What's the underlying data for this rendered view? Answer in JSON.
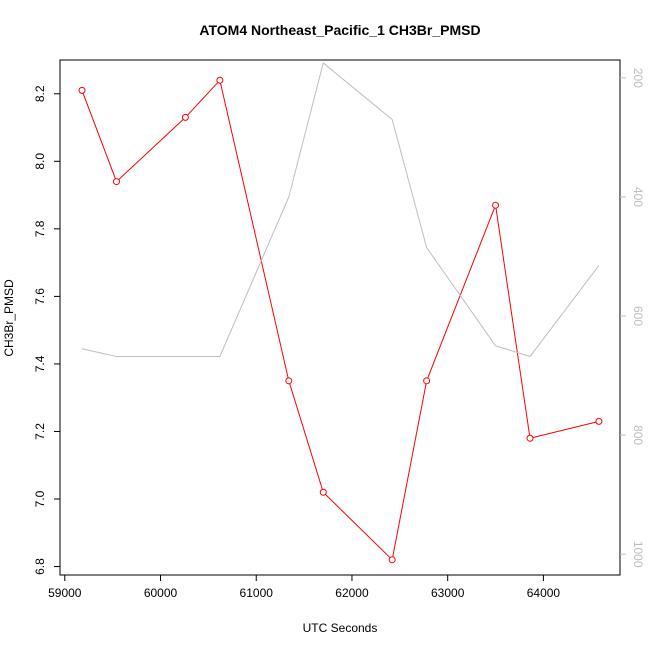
{
  "chart_data": {
    "type": "line",
    "title": "ATOM4 Northeast_Pacific_1 CH3Br_PMSD",
    "xlabel": "UTC Seconds",
    "ylabel": "CH3Br_PMSD",
    "y2label": "",
    "xlim": [
      58950,
      64800
    ],
    "ylim": [
      6.775,
      8.3
    ],
    "y2lim": [
      1035,
      170
    ],
    "y2_reversed": true,
    "x_ticks": [
      59000,
      60000,
      61000,
      62000,
      63000,
      64000
    ],
    "y_ticks": [
      6.8,
      7.0,
      7.2,
      7.4,
      7.6,
      7.8,
      8.0,
      8.2
    ],
    "y2_ticks": [
      200,
      400,
      600,
      800,
      1000
    ],
    "grid": false,
    "legend": "none",
    "series": [
      {
        "axis": "left",
        "color": "#ff0000",
        "marker": "circle-open",
        "x": [
          59180,
          59540,
          60260,
          60620,
          61340,
          61700,
          62420,
          62780,
          63500,
          63860,
          64580
        ],
        "y": [
          8.21,
          7.94,
          8.13,
          8.24,
          7.35,
          7.02,
          6.82,
          7.35,
          7.87,
          7.18,
          7.23
        ]
      },
      {
        "axis": "right",
        "color": "#bebebe",
        "marker": "none",
        "x": [
          59180,
          59540,
          60260,
          60620,
          61340,
          61700,
          62420,
          62780,
          63500,
          63860,
          64580
        ],
        "y": [
          655,
          668,
          668,
          668,
          400,
          175,
          270,
          485,
          650,
          668,
          515
        ]
      }
    ]
  }
}
